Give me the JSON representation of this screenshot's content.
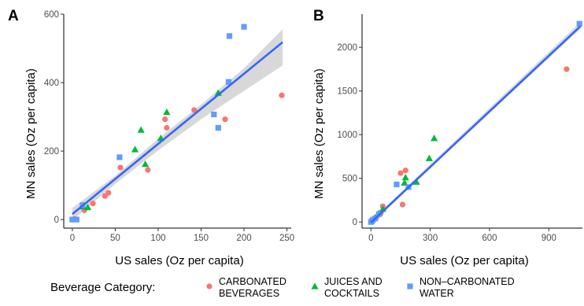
{
  "legend": {
    "title": "Beverage Category:",
    "entries": [
      {
        "line1": "CARBONATED",
        "line2": "BEVERAGES",
        "color": "#F8766D",
        "shape": "circle"
      },
      {
        "line1": "JUICES AND",
        "line2": "COCKTAILS",
        "color": "#00BA38",
        "shape": "triangle"
      },
      {
        "line1": "NON–CARBONATED",
        "line2": "WATER",
        "color": "#619CFF",
        "shape": "square"
      }
    ]
  },
  "fit_color": "#3366FF",
  "band_color": "#BEBEBE",
  "chart_data": [
    {
      "panel": "A",
      "type": "scatter",
      "xlabel": "US sales (Oz per capita)",
      "ylabel": "MN sales (Oz per capita)",
      "xlim": [
        -10,
        255
      ],
      "ylim": [
        -25,
        600
      ],
      "xticks": [
        0,
        50,
        100,
        150,
        200,
        250
      ],
      "yticks": [
        0,
        200,
        400,
        600
      ],
      "fit": {
        "intercept": 16,
        "slope": 2.05
      },
      "band": {
        "x": [
          0,
          50,
          100,
          150,
          200,
          245
        ],
        "lower": [
          -2,
          104,
          202,
          293,
          376,
          450
        ],
        "upper": [
          34,
          128,
          236,
          336,
          442,
          556
        ]
      },
      "series": [
        {
          "name": "CARBONATED BEVERAGES",
          "points": [
            [
              0,
              0
            ],
            [
              3,
              2
            ],
            [
              14,
              27
            ],
            [
              24,
              47
            ],
            [
              38,
              69
            ],
            [
              42,
              78
            ],
            [
              56,
              152
            ],
            [
              88,
              145
            ],
            [
              108,
              293
            ],
            [
              110,
              268
            ],
            [
              142,
              320
            ],
            [
              178,
              293
            ],
            [
              244,
              363
            ]
          ]
        },
        {
          "name": "JUICES AND COCKTAILS",
          "points": [
            [
              12,
              38
            ],
            [
              18,
              36
            ],
            [
              73,
              205
            ],
            [
              80,
              262
            ],
            [
              85,
              162
            ],
            [
              103,
              238
            ],
            [
              110,
              314
            ],
            [
              170,
              370
            ]
          ]
        },
        {
          "name": "NON-CARBONATED WATER",
          "points": [
            [
              0,
              0
            ],
            [
              5,
              0
            ],
            [
              12,
              42
            ],
            [
              55,
              182
            ],
            [
              165,
              307
            ],
            [
              170,
              268
            ],
            [
              182,
              402
            ],
            [
              183,
              536
            ],
            [
              200,
              563
            ]
          ]
        }
      ]
    },
    {
      "panel": "B",
      "type": "scatter",
      "xlabel": "US sales (Oz per capita)",
      "ylabel": "MN sales (Oz per capita)",
      "xlim": [
        -45,
        1070
      ],
      "ylim": [
        -70,
        2380
      ],
      "xticks": [
        0,
        300,
        600,
        900
      ],
      "yticks": [
        0,
        500,
        1000,
        1500,
        2000
      ],
      "fit": {
        "intercept": -5,
        "slope": 2.12
      },
      "band": {
        "x": [
          0,
          500,
          1060
        ],
        "lower": [
          -25,
          1040,
          2210
        ],
        "upper": [
          15,
          1090,
          2290
        ]
      },
      "series": [
        {
          "name": "CARBONATED BEVERAGES",
          "points": [
            [
              5,
              10
            ],
            [
              15,
              30
            ],
            [
              30,
              60
            ],
            [
              50,
              100
            ],
            [
              60,
              180
            ],
            [
              150,
              560
            ],
            [
              160,
              200
            ],
            [
              175,
              590
            ],
            [
              990,
              1750
            ]
          ]
        },
        {
          "name": "JUICES AND COCKTAILS",
          "points": [
            [
              20,
              50
            ],
            [
              40,
              100
            ],
            [
              60,
              150
            ],
            [
              170,
              450
            ],
            [
              175,
              510
            ],
            [
              230,
              460
            ],
            [
              295,
              730
            ],
            [
              320,
              960
            ]
          ]
        },
        {
          "name": "NON-CARBONATED WATER",
          "points": [
            [
              0,
              0
            ],
            [
              5,
              10
            ],
            [
              10,
              25
            ],
            [
              20,
              40
            ],
            [
              40,
              90
            ],
            [
              130,
              430
            ],
            [
              190,
              400
            ],
            [
              1055,
              2270
            ]
          ]
        }
      ]
    }
  ]
}
